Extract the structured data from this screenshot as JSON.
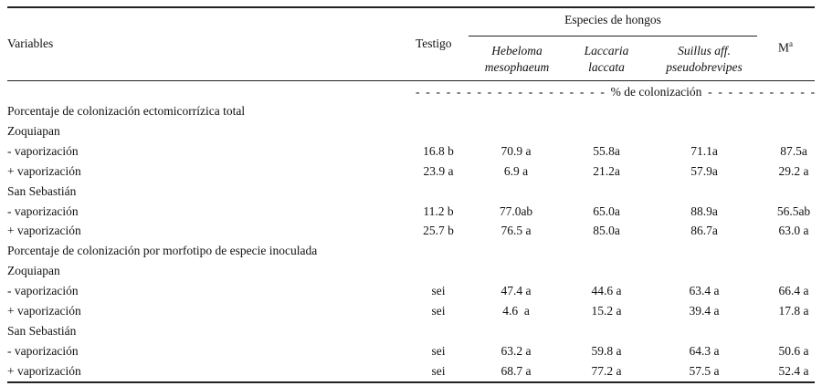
{
  "header": {
    "variables": "Variables",
    "testigo": "Testigo",
    "species_group": "Especies de hongos",
    "species": [
      {
        "line1": "Hebeloma",
        "line2": "mesophaeum"
      },
      {
        "line1": "Laccaria",
        "line2": "laccata"
      },
      {
        "line1": "Suillus aff.",
        "line2": "pseudobrevipes"
      }
    ],
    "m_label": "M",
    "m_sup": "a",
    "unit_row": "% de colonización"
  },
  "rows": [
    {
      "label": "Porcentaje de colonización ectomicorrízica  total",
      "values": []
    },
    {
      "label": "Zoquiapan",
      "values": []
    },
    {
      "label": "- vaporización",
      "values": [
        "16.8 b",
        "70.9 a",
        "55.8a",
        "71.1a",
        "87.5a"
      ]
    },
    {
      "label": "+ vaporización",
      "values": [
        "23.9 a",
        "6.9 a",
        "21.2a",
        "57.9a",
        "29.2 a"
      ]
    },
    {
      "label": "San Sebastián",
      "values": []
    },
    {
      "label": "- vaporización",
      "values": [
        "11.2 b",
        "77.0ab",
        "65.0a",
        "88.9a",
        "56.5ab"
      ]
    },
    {
      "label": "+ vaporización",
      "values": [
        "25.7 b",
        "76.5 a",
        "85.0a",
        "86.7a",
        "63.0 a"
      ]
    },
    {
      "label": "Porcentaje de colonización por   morfotipo de especie inoculada",
      "values": []
    },
    {
      "label": "Zoquiapan",
      "values": []
    },
    {
      "label": "- vaporización",
      "values": [
        "sei",
        "47.4 a",
        "44.6 a",
        "63.4 a",
        "66.4 a"
      ]
    },
    {
      "label": "+ vaporización",
      "values": [
        "sei",
        "4.6  a",
        "15.2 a",
        "39.4 a",
        "17.8 a"
      ]
    },
    {
      "label": "San Sebastián",
      "values": []
    },
    {
      "label": "- vaporización",
      "values": [
        "sei",
        "63.2 a",
        "59.8 a",
        "64.3 a",
        "50.6 a"
      ]
    },
    {
      "label": "+ vaporización",
      "values": [
        "sei",
        "68.7 a",
        "77.2 a",
        "57.5 a",
        "52.4 a"
      ]
    }
  ]
}
